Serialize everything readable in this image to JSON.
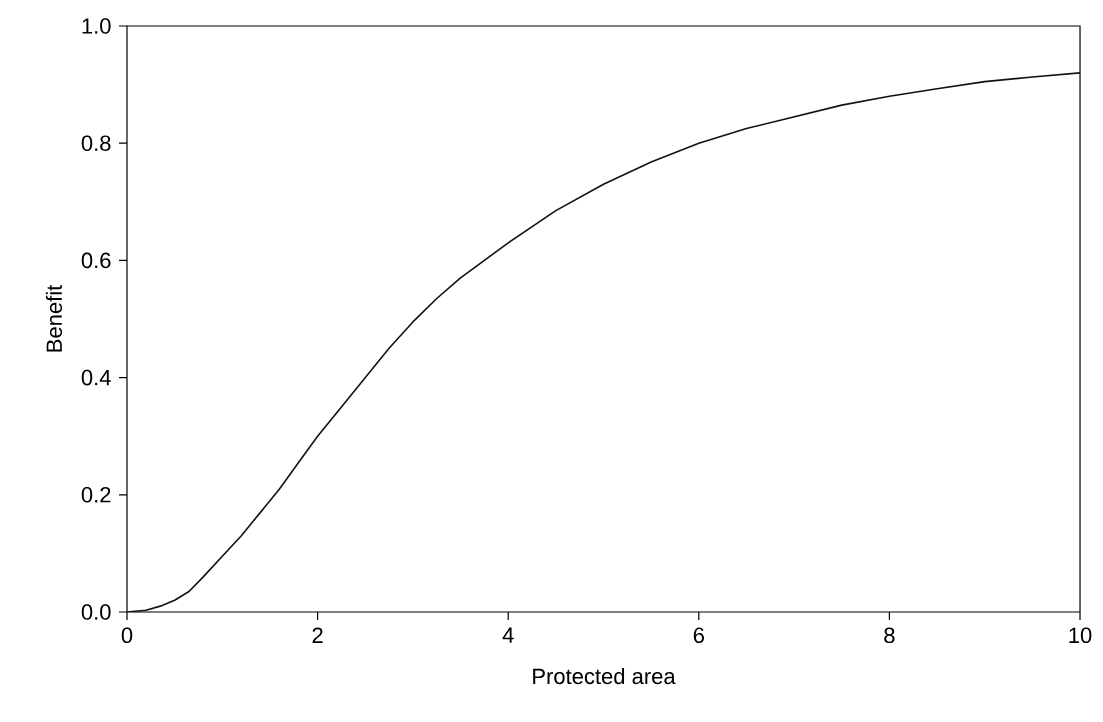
{
  "chart_data": {
    "type": "line",
    "xlabel": "Protected area",
    "ylabel": "Benefit",
    "x": [
      0,
      0.2,
      0.35,
      0.5,
      0.65,
      0.8,
      1.0,
      1.2,
      1.4,
      1.6,
      1.8,
      2.0,
      2.25,
      2.5,
      2.75,
      3.0,
      3.25,
      3.5,
      3.75,
      4.0,
      4.5,
      5.0,
      5.5,
      6.0,
      6.5,
      7.0,
      7.5,
      8.0,
      8.5,
      9.0,
      9.5,
      10.0
    ],
    "series": [
      {
        "color": "#111111",
        "values": [
          0.0,
          0.003,
          0.01,
          0.02,
          0.035,
          0.06,
          0.095,
          0.13,
          0.17,
          0.21,
          0.255,
          0.3,
          0.35,
          0.4,
          0.45,
          0.495,
          0.535,
          0.57,
          0.6,
          0.63,
          0.685,
          0.73,
          0.768,
          0.8,
          0.825,
          0.845,
          0.865,
          0.88,
          0.893,
          0.905,
          0.913,
          0.92
        ]
      }
    ],
    "xlim": [
      0,
      10
    ],
    "ylim": [
      0,
      1
    ],
    "xticks": [
      0,
      2,
      4,
      6,
      8,
      10
    ],
    "yticks": [
      {
        "value": 0,
        "label": "0.0"
      },
      {
        "value": 0.2,
        "label": "0.2"
      },
      {
        "value": 0.4,
        "label": "0.4"
      },
      {
        "value": 0.6,
        "label": "0.6"
      },
      {
        "value": 0.8,
        "label": "0.8"
      },
      {
        "value": 1,
        "label": "1.0"
      }
    ],
    "grid": false,
    "marker": "none",
    "line_style": "solid"
  }
}
